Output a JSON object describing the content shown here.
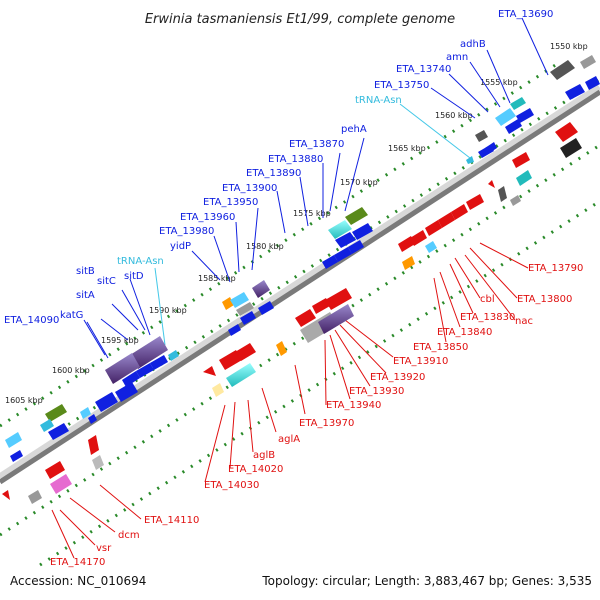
{
  "title": "Erwinia tasmaniensis Et1/99, complete genome",
  "footer": {
    "accession": "Accession: NC_010694",
    "topology": "Topology: circular; Length: 3,883,467 bp; Genes: 3,535"
  },
  "kbp_ticks": [
    "1550 kbp",
    "1555 kbp",
    "1560 kbp",
    "1565 kbp",
    "1570 kbp",
    "1575 kbp",
    "1580 kbp",
    "1585 kbp",
    "1590 kbp",
    "1595 kbp",
    "1600 kbp",
    "1605 kbp"
  ],
  "upper_labels": [
    "ETA_13690",
    "adhB",
    "amn",
    "ETA_13740",
    "ETA_13750",
    "tRNA-Asn",
    "pehA",
    "ETA_13870",
    "ETA_13880",
    "ETA_13890",
    "ETA_13900",
    "ETA_13950",
    "ETA_13960",
    "ETA_13980",
    "yidP",
    "tRNA-Asn",
    "sitD",
    "sitC",
    "sitB",
    "sitA",
    "katG",
    "ETA_14090"
  ],
  "lower_labels": [
    "ETA_13790",
    "ETA_13800",
    "nac",
    "cbl",
    "ETA_13830",
    "ETA_13840",
    "ETA_13850",
    "ETA_13910",
    "ETA_13920",
    "ETA_13930",
    "ETA_13940",
    "ETA_13970",
    "aglA",
    "aglB",
    "ETA_14020",
    "ETA_14030",
    "ETA_14110",
    "dcm",
    "vsr",
    "ETA_14170"
  ],
  "colors": {
    "forward_gene": "#1020e0",
    "reverse_gene": "#e01010",
    "trna": "#33bbdd",
    "backbone": "#808080",
    "ruler_dots": "#2a8a2a"
  }
}
